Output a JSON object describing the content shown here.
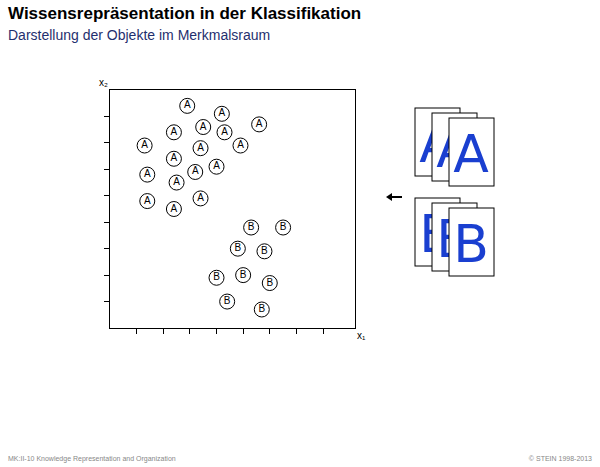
{
  "chart_data": {
    "type": "scatter",
    "title": "Wissensrepräsentation in der Klassifikation",
    "subtitle": "Darstellung der Objekte im Merkmalsraum",
    "xlabel": "x₁",
    "ylabel": "x₂",
    "xlim": [
      0,
      9.2
    ],
    "ylim": [
      0,
      9
    ],
    "xticks": [
      1,
      2,
      3,
      4,
      5,
      6,
      7,
      8
    ],
    "yticks": [
      1,
      2,
      3,
      4,
      5,
      6,
      7,
      8
    ],
    "tick_labels": false,
    "grid": false,
    "marker": "circle",
    "series": [
      {
        "name": "A",
        "color": "#000000",
        "x": [
          2.9,
          4.2,
          5.6,
          2.4,
          3.5,
          4.3,
          1.3,
          3.4,
          4.9,
          2.4,
          4.0,
          1.4,
          3.2,
          2.5,
          1.4,
          2.4,
          3.4
        ],
        "y": [
          8.4,
          8.1,
          7.7,
          7.4,
          7.6,
          7.4,
          6.9,
          6.8,
          6.9,
          6.4,
          6.1,
          5.8,
          5.9,
          5.5,
          4.8,
          4.5,
          4.9
        ]
      },
      {
        "name": "B",
        "color": "#000000",
        "x": [
          5.3,
          6.5,
          4.8,
          5.8,
          4.0,
          5.0,
          6.0,
          4.4,
          5.7
        ],
        "y": [
          3.8,
          3.8,
          3.0,
          2.9,
          1.9,
          2.0,
          1.7,
          1.0,
          0.7
        ]
      }
    ],
    "annotations": [
      "MK:II-10   Knowledge Representation and Organization",
      "© STEIN 1998-2013"
    ]
  }
}
